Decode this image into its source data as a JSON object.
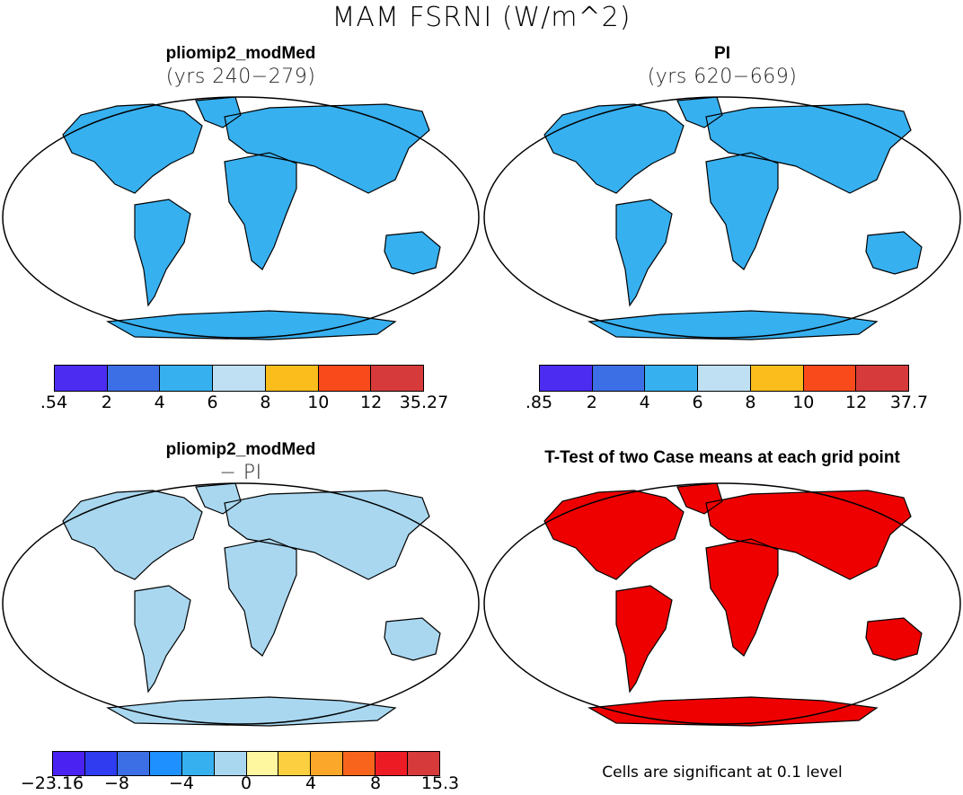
{
  "title": "MAM FSRNI (W/m^2)",
  "panels": [
    {
      "title": "pliomip2_modMed",
      "subtitle": "(yrs 240−279)",
      "colorbar": {
        "colors": [
          "#4b2cf0",
          "#3c6fe6",
          "#37b0f0",
          "#bfe0f2",
          "#fbbd1c",
          "#f94a1c",
          "#d63a3a"
        ],
        "labels": [
          ".54",
          "2",
          "4",
          "6",
          "8",
          "10",
          "12",
          "35.27"
        ]
      }
    },
    {
      "title": "PI",
      "subtitle": "(yrs 620−669)",
      "colorbar": {
        "colors": [
          "#4b2cf0",
          "#3c6fe6",
          "#37b0f0",
          "#bfe0f2",
          "#fbbd1c",
          "#f94a1c",
          "#d63a3a"
        ],
        "labels": [
          ".85",
          "2",
          "4",
          "6",
          "8",
          "10",
          "12",
          "37.7"
        ]
      }
    },
    {
      "title": "pliomip2_modMed",
      "subtitle": "− PI",
      "colorbar": {
        "colors": [
          "#4a22f2",
          "#2f3cf0",
          "#3c6fe6",
          "#1e90ff",
          "#37b0f0",
          "#a9d7f0",
          "#fef7a0",
          "#fbcf3f",
          "#fba72a",
          "#f8641c",
          "#ed1c24",
          "#d63a3a"
        ],
        "labels": [
          "−23.16",
          "−8",
          "−4",
          "0",
          "4",
          "8",
          "15.3"
        ]
      }
    },
    {
      "title": "T-Test of two Case means at each grid point",
      "subtitle": ""
    }
  ],
  "footnote": "Cells are significant at 0.1 level",
  "colors": {
    "land_sig": "#ee0000",
    "outline": "#000000"
  }
}
